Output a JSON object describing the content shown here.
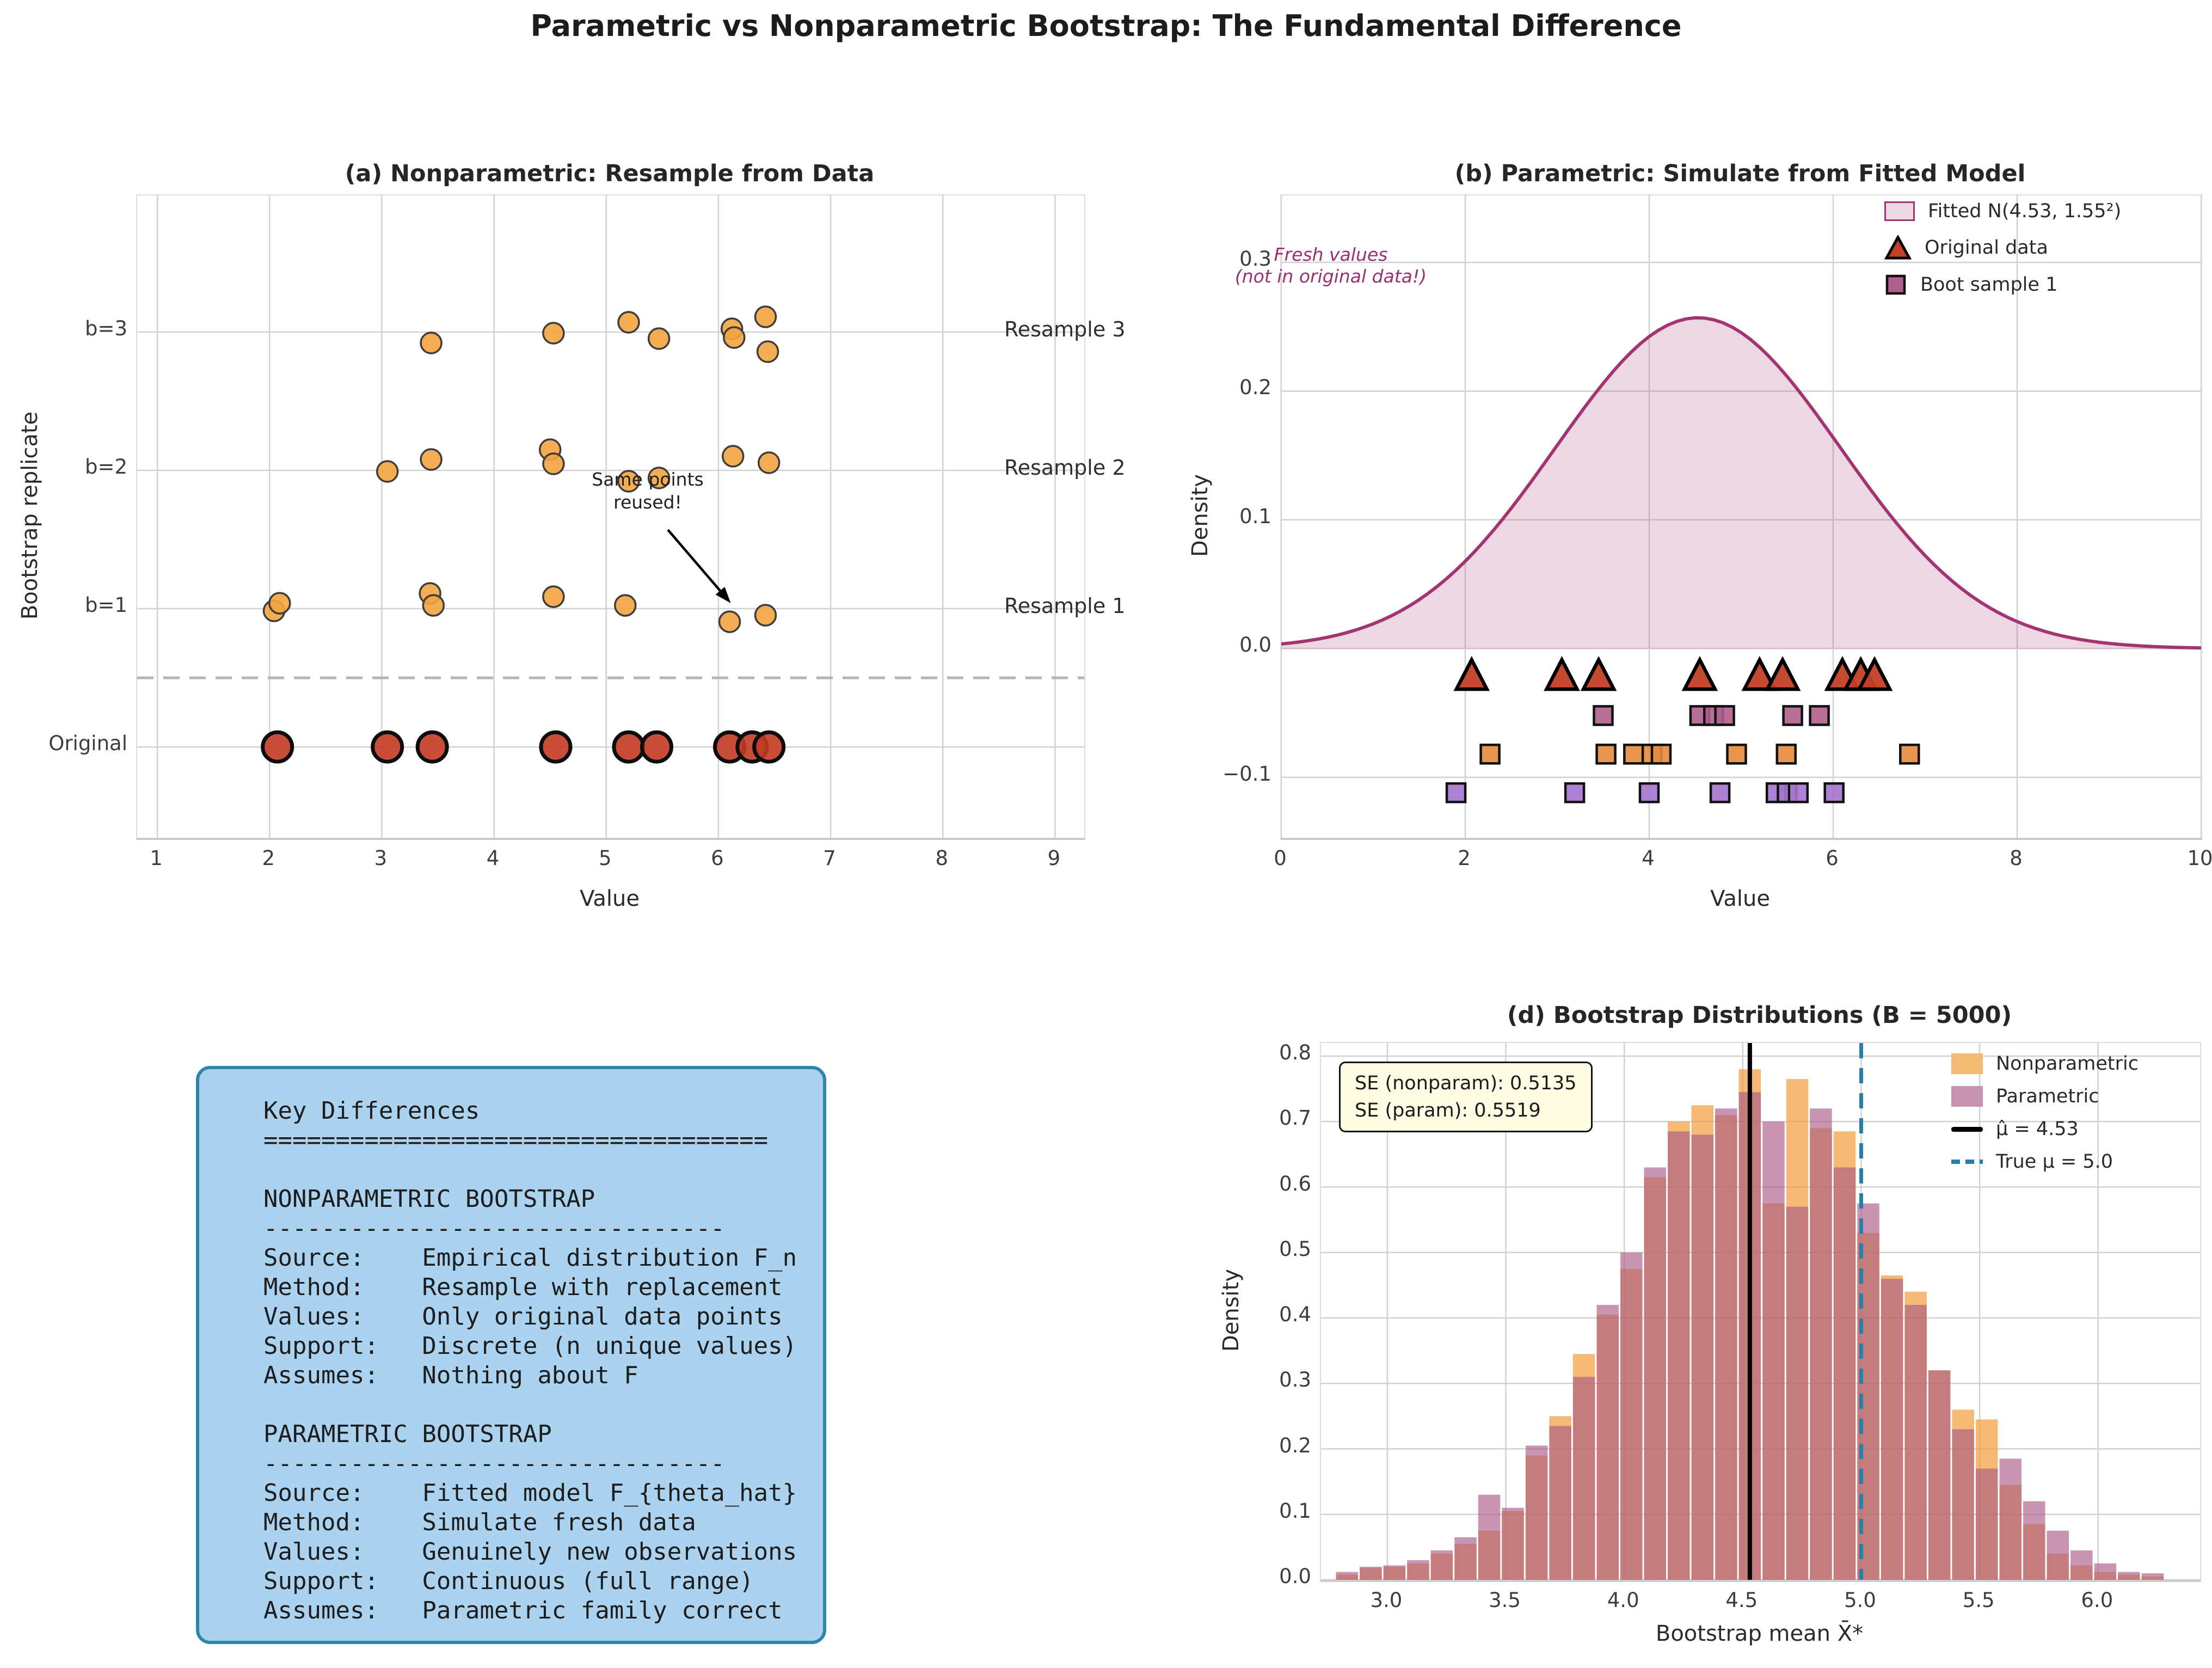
{
  "figure": {
    "title": "Parametric vs Nonparametric Bootstrap: The Fundamental Difference"
  },
  "chart_data": [
    {
      "id": "a",
      "type": "scatter",
      "title": "(a) Nonparametric: Resample from Data",
      "xlabel": "Value",
      "ylabel": "Bootstrap replicate",
      "xlim": [
        0.82,
        9.26
      ],
      "ylim": [
        -0.657,
        3.988
      ],
      "x_ticks": [
        1,
        2,
        3,
        4,
        5,
        6,
        7,
        8,
        9
      ],
      "x_tick_labels": [
        "1",
        "2",
        "3",
        "4",
        "5",
        "6",
        "7",
        "8",
        "9"
      ],
      "grid": true,
      "separator_y": 0.5,
      "rows": [
        {
          "label": "Original",
          "y": 0,
          "marker": "circle",
          "size": 27,
          "color": "#C23B25",
          "edge": "#0d0d0d",
          "ew": 7,
          "points": [
            {
              "x": 2.07,
              "dy": 0
            },
            {
              "x": 3.05,
              "dy": 0
            },
            {
              "x": 3.45,
              "dy": 0
            },
            {
              "x": 4.55,
              "dy": 0
            },
            {
              "x": 5.2,
              "dy": 0
            },
            {
              "x": 5.45,
              "dy": 0
            },
            {
              "x": 6.1,
              "dy": 0
            },
            {
              "x": 6.3,
              "dy": 0
            },
            {
              "x": 6.45,
              "dy": 0
            }
          ]
        },
        {
          "label": "b=1",
          "y": 1,
          "marker": "circle",
          "size": 19,
          "color": "#F3A43F",
          "edge": "#3d3d3d",
          "ew": 3.5,
          "points": [
            {
              "x": 2.04,
              "dy": 4
            },
            {
              "x": 2.09,
              "dy": -10
            },
            {
              "x": 3.43,
              "dy": -28
            },
            {
              "x": 3.46,
              "dy": -6
            },
            {
              "x": 4.53,
              "dy": -22
            },
            {
              "x": 5.17,
              "dy": -6
            },
            {
              "x": 6.1,
              "dy": 24
            },
            {
              "x": 6.42,
              "dy": 12
            }
          ]
        },
        {
          "label": "b=2",
          "y": 2,
          "marker": "circle",
          "size": 19,
          "color": "#F3A43F",
          "edge": "#3d3d3d",
          "ew": 3.5,
          "points": [
            {
              "x": 3.05,
              "dy": 2
            },
            {
              "x": 3.44,
              "dy": -20
            },
            {
              "x": 4.5,
              "dy": -38
            },
            {
              "x": 4.53,
              "dy": -12
            },
            {
              "x": 5.2,
              "dy": 20
            },
            {
              "x": 5.47,
              "dy": 14
            },
            {
              "x": 6.13,
              "dy": -26
            },
            {
              "x": 6.45,
              "dy": -14
            }
          ]
        },
        {
          "label": "b=3",
          "y": 3,
          "marker": "circle",
          "size": 19,
          "color": "#F3A43F",
          "edge": "#3d3d3d",
          "ew": 3.5,
          "points": [
            {
              "x": 3.44,
              "dy": 20
            },
            {
              "x": 4.53,
              "dy": 2
            },
            {
              "x": 5.2,
              "dy": -18
            },
            {
              "x": 5.47,
              "dy": 12
            },
            {
              "x": 6.12,
              "dy": -6
            },
            {
              "x": 6.14,
              "dy": 10
            },
            {
              "x": 6.42,
              "dy": -28
            },
            {
              "x": 6.44,
              "dy": 36
            }
          ]
        }
      ],
      "right_labels": [
        {
          "text": "Resample 1",
          "y": 1
        },
        {
          "text": "Resample 2",
          "y": 2
        },
        {
          "text": "Resample 3",
          "y": 3
        }
      ],
      "annotation": {
        "line1": "Same points",
        "line2": "reused!",
        "arrow_from": {
          "x": 5.55,
          "y": 1.57
        },
        "arrow_to": {
          "x": 6.11,
          "y": 1.04
        }
      }
    },
    {
      "id": "b",
      "type": "area",
      "title": "(b) Parametric: Simulate from Fitted Model",
      "xlabel": "Value",
      "ylabel": "Density",
      "xlim": [
        0,
        10
      ],
      "ylim": [
        -0.147,
        0.352
      ],
      "x_ticks": [
        0,
        2,
        4,
        6,
        8,
        10
      ],
      "x_tick_labels": [
        "0",
        "2",
        "4",
        "6",
        "8",
        "10"
      ],
      "y_ticks": [
        -0.1,
        0,
        0.1,
        0.2,
        0.3
      ],
      "y_tick_labels": [
        "−0.1",
        "0.0",
        "0.1",
        "0.2",
        "0.3"
      ],
      "grid": true,
      "curve": {
        "dist": "normal",
        "mean": 4.53,
        "sd": 1.55,
        "peak_density": 0.257,
        "line_color": "#A23571",
        "fill_color": "rgba(164,53,113,0.20)"
      },
      "rug_rows": [
        {
          "name": "Original data",
          "marker": "triangle",
          "color": "#C33F27",
          "y": -0.021,
          "values": [
            2.07,
            3.05,
            3.45,
            4.55,
            5.2,
            5.45,
            6.1,
            6.3,
            6.45
          ]
        },
        {
          "name": "Boot sample 1",
          "marker": "square",
          "color": "#AF5F8C",
          "y": -0.052,
          "values": [
            3.5,
            4.55,
            4.7,
            4.82,
            5.56,
            5.85
          ]
        },
        {
          "name": "",
          "marker": "square",
          "color": "#E68A3D",
          "y": -0.082,
          "values": [
            2.27,
            3.53,
            3.83,
            4.03,
            4.13,
            4.95,
            5.49,
            6.83
          ]
        },
        {
          "name": "",
          "marker": "square",
          "color": "#A473CE",
          "y": -0.112,
          "values": [
            1.9,
            3.19,
            4.0,
            4.77,
            5.38,
            5.5,
            5.62,
            6.01
          ]
        }
      ],
      "legend": [
        {
          "label": "Fitted N(4.53, 1.55²)",
          "swatch": "patch"
        },
        {
          "label": "Original data",
          "swatch": "triangle"
        },
        {
          "label": "Boot sample 1",
          "swatch": "square"
        }
      ],
      "annotation": {
        "line1": "Fresh values",
        "line2": "(not in original data!)",
        "color": "#9C2F6F"
      }
    },
    {
      "id": "d",
      "type": "bar",
      "title": "(d) Bootstrap Distributions (B = 5000)",
      "xlabel": "Bootstrap mean X̄*",
      "ylabel": "Density",
      "xlim": [
        2.72,
        6.43
      ],
      "ylim": [
        0,
        0.82
      ],
      "x_ticks": [
        3.0,
        3.5,
        4.0,
        4.5,
        5.0,
        5.5,
        6.0
      ],
      "x_tick_labels": [
        "3.0",
        "3.5",
        "4.0",
        "4.5",
        "5.0",
        "5.5",
        "6.0"
      ],
      "y_ticks": [
        0,
        0.1,
        0.2,
        0.3,
        0.4,
        0.5,
        0.6,
        0.7,
        0.8
      ],
      "y_tick_labels": [
        "0.0",
        "0.1",
        "0.2",
        "0.3",
        "0.4",
        "0.5",
        "0.6",
        "0.7",
        "0.8"
      ],
      "grid": true,
      "bins": {
        "start": 2.78,
        "width": 0.1
      },
      "series": [
        {
          "name": "Nonparametric",
          "color": "rgba(244,157,60,0.70)",
          "values": [
            0.008,
            0.018,
            0.02,
            0.025,
            0.04,
            0.055,
            0.075,
            0.105,
            0.19,
            0.25,
            0.345,
            0.405,
            0.475,
            0.615,
            0.7,
            0.725,
            0.71,
            0.78,
            0.575,
            0.765,
            0.69,
            0.685,
            0.53,
            0.465,
            0.44,
            0.32,
            0.26,
            0.245,
            0.145,
            0.085,
            0.04,
            0.022,
            0.012,
            0.008,
            0.005
          ]
        },
        {
          "name": "Parametric",
          "color": "rgba(166,86,130,0.62)",
          "values": [
            0.012,
            0.02,
            0.022,
            0.03,
            0.045,
            0.065,
            0.13,
            0.11,
            0.205,
            0.235,
            0.31,
            0.42,
            0.5,
            0.63,
            0.685,
            0.68,
            0.72,
            0.745,
            0.7,
            0.57,
            0.72,
            0.63,
            0.575,
            0.46,
            0.42,
            0.32,
            0.23,
            0.17,
            0.185,
            0.12,
            0.075,
            0.045,
            0.025,
            0.012,
            0.01
          ]
        }
      ],
      "vlines": [
        {
          "label": "μ̂ = 4.53",
          "x": 4.53,
          "style": "solid",
          "color": "#000000"
        },
        {
          "label": "True μ = 5.0",
          "x": 5.0,
          "style": "dashed",
          "color": "#2880A8"
        }
      ],
      "se_box": {
        "line1": "SE (nonparam): 0.5135",
        "line2": "SE (param): 0.5519"
      }
    }
  ],
  "key_box": {
    "lines": [
      "Key Differences",
      "===================================",
      "",
      "NONPARAMETRIC BOOTSTRAP",
      "--------------------------------",
      "Source:    Empirical distribution F_n",
      "Method:    Resample with replacement",
      "Values:    Only original data points",
      "Support:   Discrete (n unique values)",
      "Assumes:   Nothing about F",
      "",
      "PARAMETRIC BOOTSTRAP",
      "--------------------------------",
      "Source:    Fitted model F_{theta_hat}",
      "Method:    Simulate fresh data",
      "Values:    Genuinely new observations",
      "Support:   Continuous (full range)",
      "Assumes:   Parametric family correct"
    ]
  }
}
